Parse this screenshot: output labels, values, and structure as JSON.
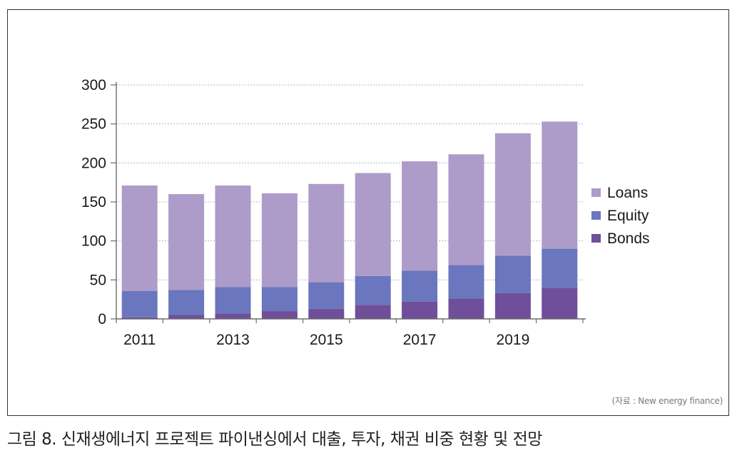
{
  "chart_data": {
    "type": "bar",
    "stacked": true,
    "categories": [
      "2011",
      "2012",
      "2013",
      "2014",
      "2015",
      "2016",
      "2017",
      "2018",
      "2019",
      "2020"
    ],
    "x_tick_labels": [
      "2011",
      "2013",
      "2015",
      "2017",
      "2019"
    ],
    "series": [
      {
        "name": "Bonds",
        "color": "#6f4e9a",
        "values": [
          2,
          5,
          7,
          10,
          13,
          18,
          22,
          26,
          33,
          40
        ]
      },
      {
        "name": "Equity",
        "color": "#6a76bd",
        "values": [
          34,
          32,
          34,
          31,
          34,
          37,
          40,
          43,
          48,
          50
        ]
      },
      {
        "name": "Loans",
        "color": "#ad9bc9",
        "values": [
          135,
          123,
          130,
          120,
          126,
          132,
          140,
          142,
          157,
          163
        ]
      }
    ],
    "legend_order": [
      "Loans",
      "Equity",
      "Bonds"
    ],
    "legend_position": "right",
    "y_ticks": [
      0,
      50,
      100,
      150,
      200,
      250,
      300
    ],
    "ylim": [
      0,
      300
    ],
    "grid": true,
    "title": "",
    "xlabel": "",
    "ylabel": ""
  },
  "source_note": "(자료 : New energy finance)",
  "caption": "그림 8. 신재생에너지 프로젝트 파이낸싱에서 대출, 투자, 채권 비중 현황 및 전망"
}
